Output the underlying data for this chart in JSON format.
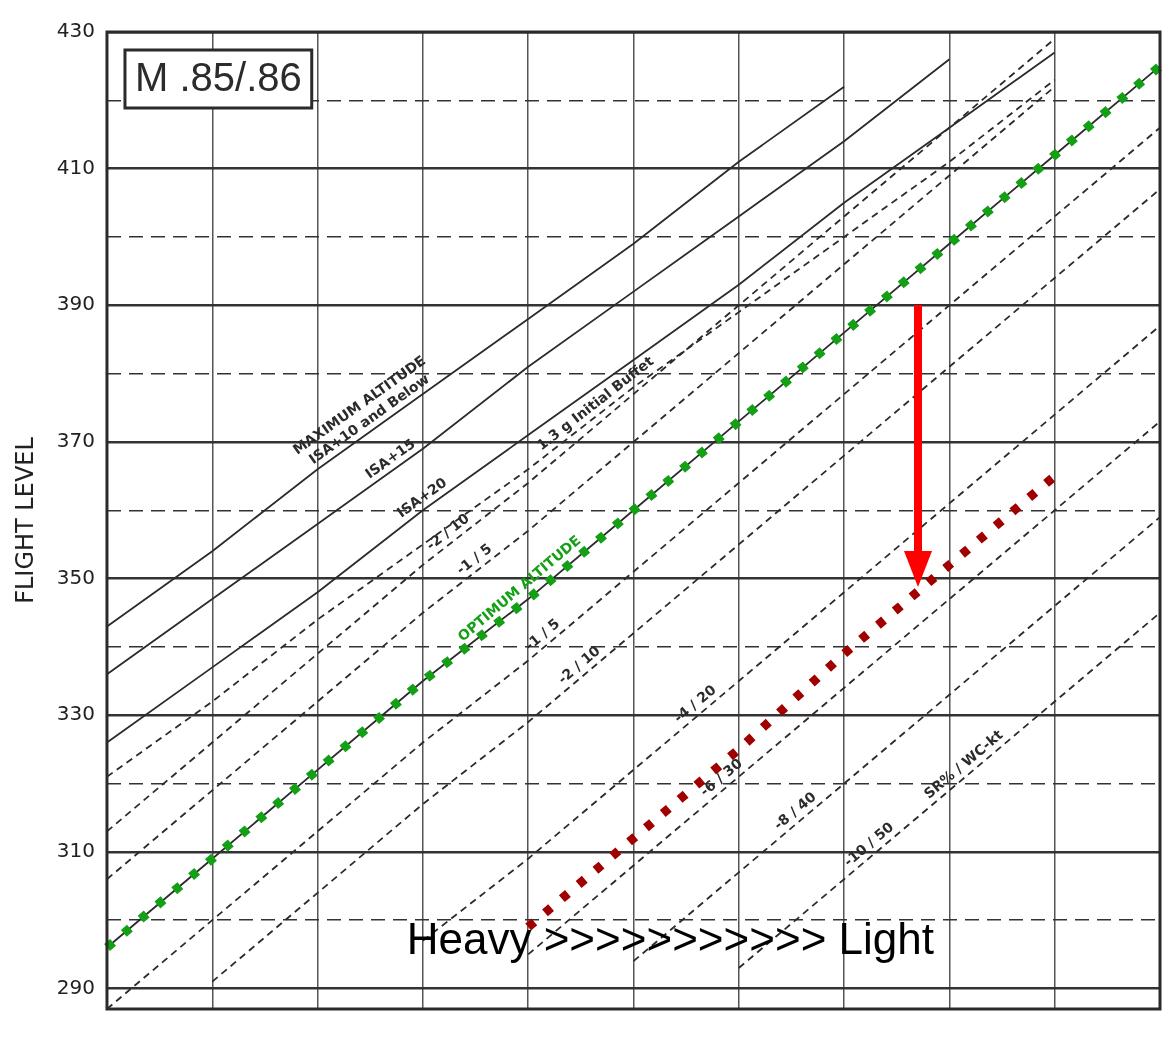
{
  "chart_data": {
    "type": "line",
    "title": "M .85/.86",
    "ylabel": "FLIGHT LEVEL",
    "categories": [
      null,
      null,
      null,
      null,
      null,
      null,
      null,
      null,
      null,
      null,
      null
    ],
    "ylim": [
      287,
      430
    ],
    "yticks": [
      290,
      {
        "value": 300,
        "label": null
      },
      310,
      {
        "value": 320,
        "label": null
      },
      330,
      {
        "value": 340,
        "label": null
      },
      350,
      {
        "value": 360,
        "label": null
      },
      370,
      {
        "value": 380,
        "label": null
      },
      390,
      {
        "value": 400,
        "label": null
      },
      410,
      {
        "value": 420,
        "label": null
      },
      430
    ],
    "grid": true,
    "series": [
      {
        "name": "ISA+10 and Below",
        "color": "#2b2b2b",
        "line_style": "solid",
        "values": [
          343,
          354,
          366,
          377,
          388,
          399,
          411,
          422,
          null,
          null,
          null
        ]
      },
      {
        "name": "ISA+15",
        "color": "#2b2b2b",
        "line_style": "solid",
        "values": [
          336,
          347,
          358,
          369,
          381,
          392,
          403,
          414,
          426,
          null,
          null
        ]
      },
      {
        "name": "ISA+20",
        "color": "#2b2b2b",
        "line_style": "solid",
        "values": [
          326,
          337,
          348,
          360,
          371,
          382,
          393,
          405,
          416,
          427,
          null
        ]
      },
      {
        "name": "1.3 g Initial Buffet",
        "color": "#2b2b2b",
        "line_style": "dashed",
        "values": [
          321,
          332,
          344,
          355,
          366,
          378,
          389,
          400,
          411,
          423,
          null
        ]
      },
      {
        "name": "-2 / 10",
        "color": "#2b2b2b",
        "line_style": "dashed",
        "values": [
          313,
          326,
          339,
          352,
          364,
          377,
          390,
          403,
          416,
          429,
          null
        ]
      },
      {
        "name": "-1 / 5",
        "color": "#2b2b2b",
        "line_style": "dashed",
        "values": [
          306,
          319,
          332,
          345,
          357,
          370,
          383,
          396,
          409,
          422,
          null
        ]
      },
      {
        "color": "#2b2b2b",
        "line_style": "solid",
        "values": [
          296,
          309,
          322,
          335,
          347,
          360,
          373,
          386,
          399,
          412,
          425
        ]
      },
      {
        "name": "-1 / 5",
        "color": "#2b2b2b",
        "line_style": "dashed",
        "values": [
          287,
          300,
          313,
          326,
          338,
          351,
          364,
          377,
          390,
          403,
          416
        ]
      },
      {
        "name": "-2 / 10",
        "color": "#2b2b2b",
        "line_style": "dashed",
        "values": [
          null,
          291,
          304,
          317,
          329,
          342,
          355,
          368,
          381,
          394,
          407
        ]
      },
      {
        "name": "-4 / 20",
        "color": "#2b2b2b",
        "line_style": "dashed",
        "values": [
          null,
          null,
          null,
          297,
          309,
          322,
          335,
          348,
          361,
          374,
          387
        ]
      },
      {
        "name": "-6 / 30",
        "color": "#2b2b2b",
        "line_style": "dashed",
        "values": [
          null,
          null,
          null,
          null,
          295,
          308,
          321,
          334,
          347,
          360,
          373
        ]
      },
      {
        "name": "-8 / 40",
        "color": "#2b2b2b",
        "line_style": "dashed",
        "values": [
          null,
          null,
          null,
          null,
          null,
          294,
          307,
          320,
          333,
          346,
          359
        ]
      },
      {
        "name": "-10 / 50",
        "color": "#2b2b2b",
        "line_style": "dashed",
        "values": [
          null,
          null,
          null,
          null,
          null,
          null,
          293,
          306,
          319,
          332,
          345
        ]
      },
      {
        "name": "OPTIMUM ALTITUDE",
        "color": "#14a014",
        "line_style": "dotted",
        "values": [
          296,
          309,
          322,
          335,
          347,
          360,
          373,
          386,
          399,
          412,
          425
        ]
      },
      {
        "color": "#a00000",
        "line_style": "dotted",
        "values": [
          null,
          null,
          null,
          null,
          299,
          312,
          325,
          339,
          352,
          365,
          null
        ]
      }
    ],
    "annotations": [
      "MAXIMUM ALTITUDE",
      "SR% / WC-kt",
      "Heavy >>>>>>>>>>> Light"
    ]
  }
}
